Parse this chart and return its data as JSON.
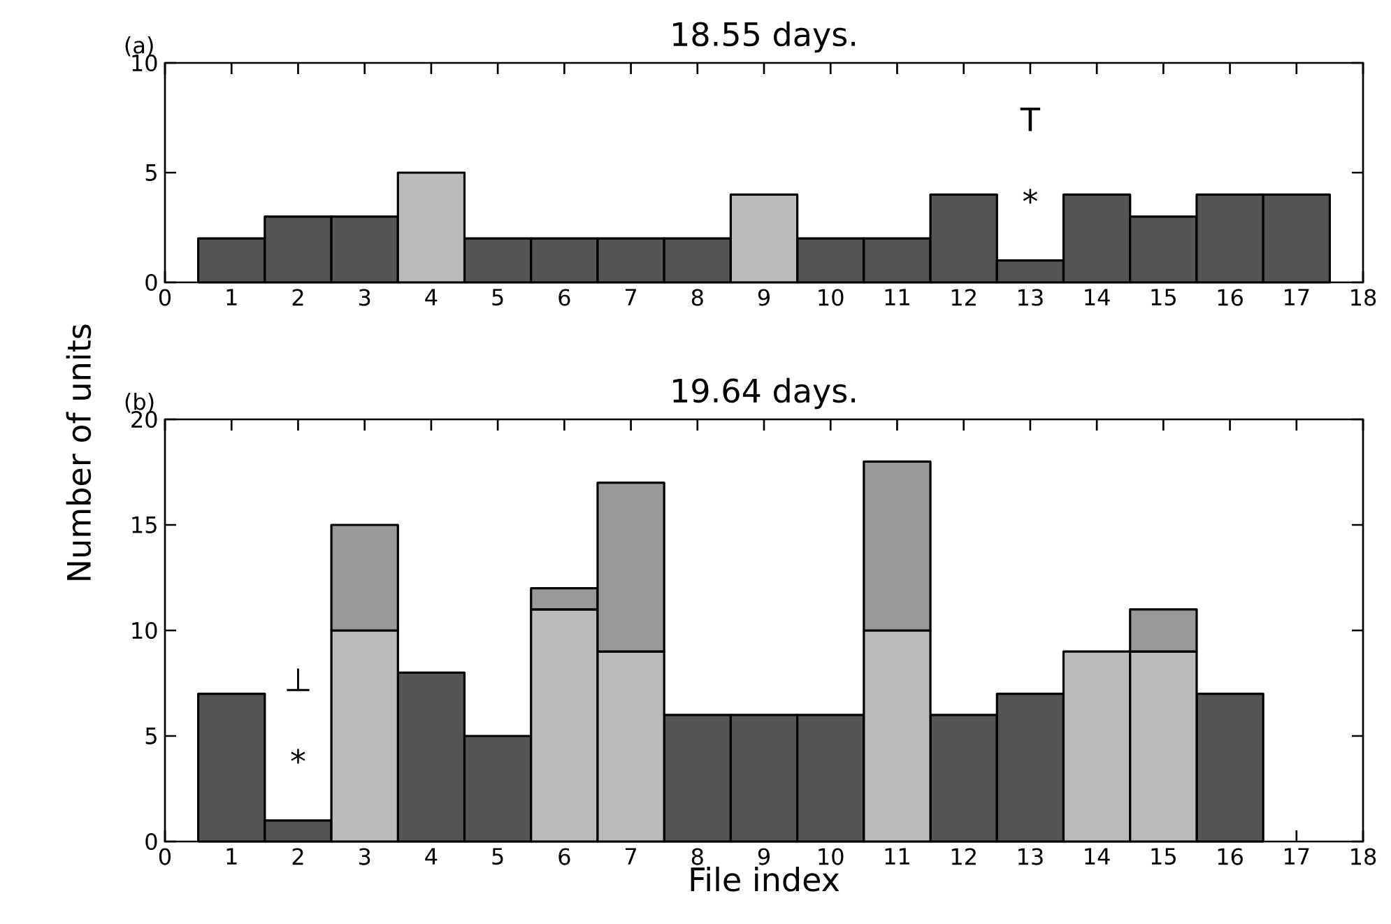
{
  "chart_data": [
    {
      "type": "bar",
      "title": "18.55 days.",
      "stacked": true,
      "x": [
        1,
        2,
        3,
        4,
        5,
        6,
        7,
        8,
        9,
        10,
        11,
        12,
        13,
        14,
        15,
        16,
        17
      ],
      "series": [
        {
          "color": "#555555",
          "values": [
            2,
            3,
            3,
            null,
            2,
            2,
            2,
            2,
            null,
            2,
            2,
            4,
            1,
            4,
            3,
            4,
            4
          ]
        },
        {
          "color": "#bbbbbb",
          "values": [
            null,
            null,
            null,
            5,
            null,
            null,
            null,
            null,
            4,
            null,
            null,
            null,
            null,
            null,
            null,
            null,
            null
          ]
        }
      ],
      "xlim": [
        0,
        18
      ],
      "xticks": [
        0,
        1,
        2,
        3,
        4,
        5,
        6,
        7,
        8,
        9,
        10,
        11,
        12,
        13,
        14,
        15,
        16,
        17,
        18
      ],
      "ylim": [
        0,
        10
      ],
      "yticks": [
        0,
        5,
        10
      ],
      "annotations": [
        "(a)",
        {
          "text": "*",
          "x": 13,
          "y": 1
        },
        "T"
      ]
    },
    {
      "type": "bar",
      "title": "19.64 days.",
      "stacked": true,
      "xlabel": "File index",
      "ylabel": "Number of units",
      "x": [
        1,
        2,
        3,
        4,
        5,
        6,
        7,
        8,
        9,
        10,
        11,
        12,
        13,
        14,
        15,
        16
      ],
      "series": [
        {
          "color": "#555555",
          "values": [
            7,
            1,
            null,
            8,
            5,
            null,
            null,
            6,
            6,
            6,
            null,
            6,
            7,
            null,
            null,
            7
          ]
        },
        {
          "color": "#bbbbbb",
          "values": [
            null,
            null,
            10,
            null,
            null,
            11,
            9,
            null,
            null,
            null,
            10,
            null,
            null,
            9,
            9,
            null
          ]
        },
        {
          "color": "#999999",
          "values": [
            null,
            null,
            5,
            null,
            null,
            1,
            8,
            null,
            null,
            null,
            8,
            null,
            null,
            null,
            2,
            null
          ]
        }
      ],
      "xlim": [
        0,
        18
      ],
      "xticks": [
        0,
        1,
        2,
        3,
        4,
        5,
        6,
        7,
        8,
        9,
        10,
        11,
        12,
        13,
        14,
        15,
        16,
        17,
        18
      ],
      "ylim": [
        0,
        20
      ],
      "yticks": [
        0,
        5,
        10,
        15,
        20
      ],
      "annotations": [
        "(b)",
        {
          "text": "*",
          "x": 2,
          "y": 1
        },
        "⊥"
      ]
    }
  ]
}
